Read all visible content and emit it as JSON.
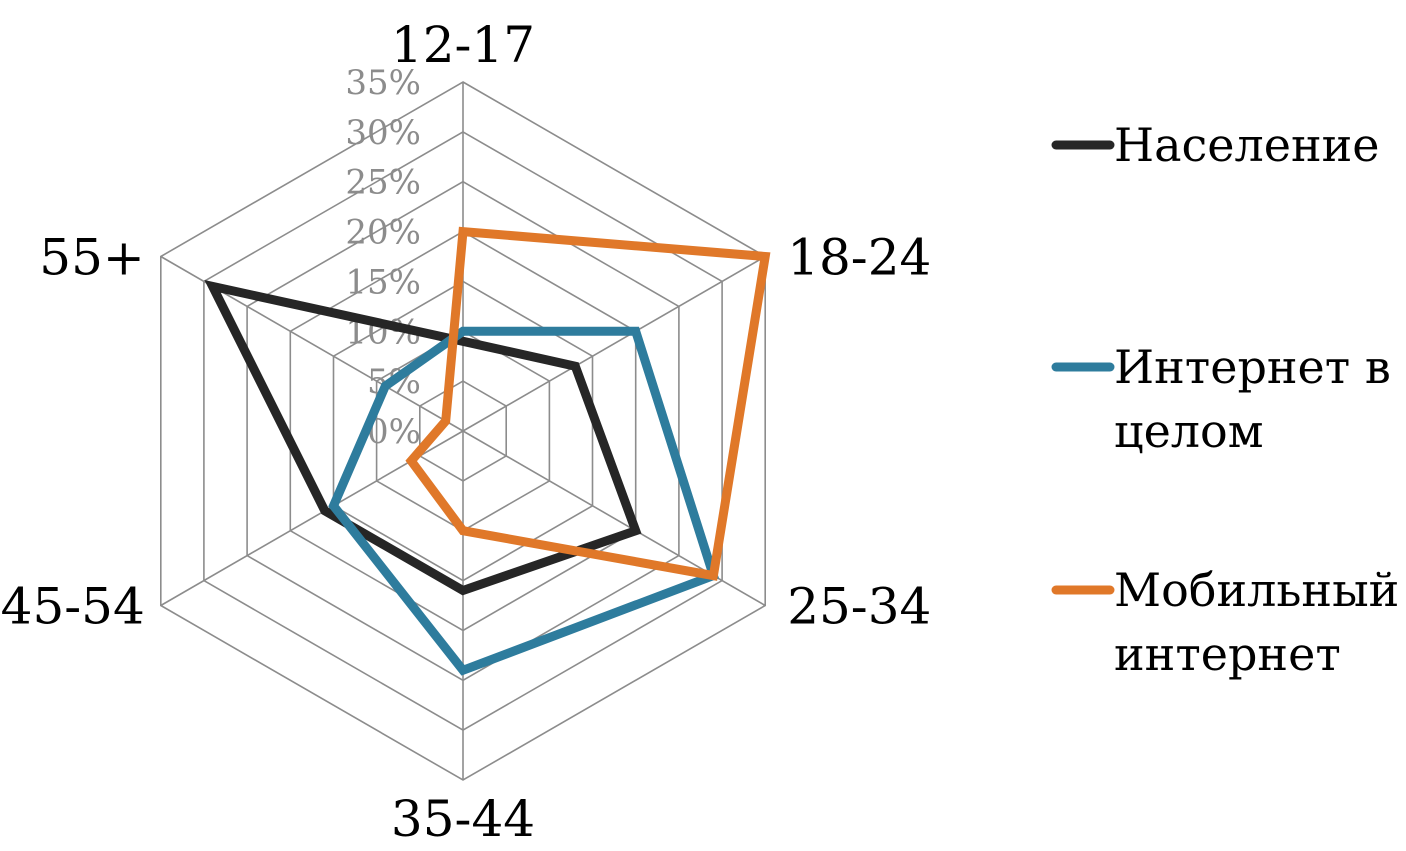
{
  "chart_data": {
    "type": "radar",
    "categories": [
      "12-17",
      "18-24",
      "25-34",
      "35-44",
      "45-54",
      "55+"
    ],
    "ticks": [
      "0%",
      "5%",
      "10%",
      "15%",
      "20%",
      "25%",
      "30%",
      "35%"
    ],
    "rmax": 35,
    "series": [
      {
        "name": "Население",
        "values": [
          9,
          13,
          20,
          16,
          16,
          29
        ],
        "color": "#262626"
      },
      {
        "name": "Интернет в целом",
        "values": [
          10,
          20,
          29,
          24,
          15,
          9
        ],
        "color": "#2e7c9d"
      },
      {
        "name": "Мобильный интернет",
        "values": [
          20,
          35,
          29,
          10,
          6,
          2
        ],
        "color": "#e07829"
      }
    ],
    "legend_position": "right"
  },
  "legend": {
    "items": [
      {
        "lines": [
          "Население"
        ]
      },
      {
        "lines": [
          "Интернет в",
          "целом"
        ]
      },
      {
        "lines": [
          "Мобильный",
          "интернет"
        ]
      }
    ]
  }
}
